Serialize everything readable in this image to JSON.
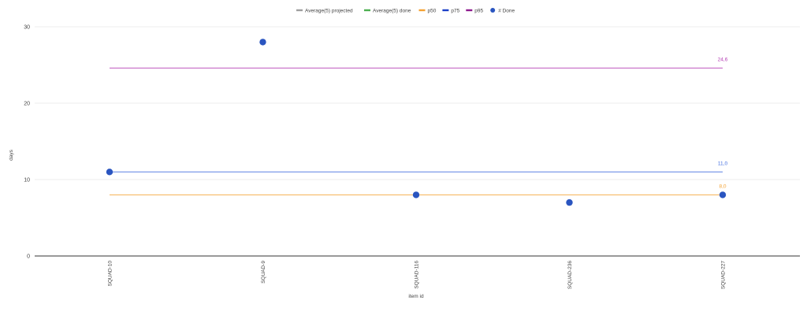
{
  "chart_data": {
    "type": "scatter",
    "title": "",
    "xlabel": "item id",
    "ylabel": "days",
    "ylim": [
      0,
      30
    ],
    "yticks": [
      "0",
      "10",
      "20",
      "30"
    ],
    "categories": [
      "SQUAD-10",
      "SQUAD-9",
      "SQUAD-116",
      "SQUAD-236",
      "SQUAD-227"
    ],
    "legend_position": "top-center",
    "legend": [
      {
        "name": "Average(5) projected",
        "color": "#9e9e9e",
        "marker": "line"
      },
      {
        "name": "Average(5) done",
        "color": "#4caf50",
        "marker": "line"
      },
      {
        "name": "p50",
        "color": "#f4a233",
        "marker": "line"
      },
      {
        "name": "p75",
        "color": "#1a3fc7",
        "marker": "line"
      },
      {
        "name": "p95",
        "color": "#8e1a8e",
        "marker": "line"
      },
      {
        "name": "# Done",
        "color": "#2a55c0",
        "marker": "dot"
      }
    ],
    "series": [
      {
        "name": "# Done",
        "kind": "scatter",
        "color": "#2a55c0",
        "values": [
          11,
          28,
          8,
          7,
          8
        ]
      },
      {
        "name": "p50",
        "kind": "line",
        "color": "#f4a233",
        "values": [
          8,
          8,
          8,
          8,
          8
        ],
        "end_label": "8,0"
      },
      {
        "name": "p75",
        "kind": "line",
        "color": "#3f6be0",
        "values": [
          11,
          11,
          11,
          11,
          11
        ],
        "end_label": "11,0"
      },
      {
        "name": "p95",
        "kind": "line",
        "color": "#b33ab3",
        "values": [
          24.6,
          24.6,
          24.6,
          24.6,
          24.6
        ],
        "end_label": "24,6"
      }
    ],
    "grid": true
  }
}
